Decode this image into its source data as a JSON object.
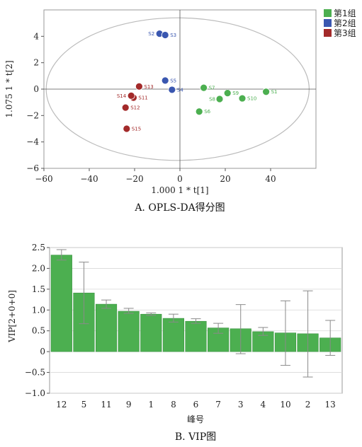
{
  "colors": {
    "group1": "#4caf50",
    "group2": "#3a57b0",
    "group3": "#a32a2a",
    "bar": "#4caf50",
    "bar_edge": "#2f8a36"
  },
  "chart_data": [
    {
      "type": "scatter",
      "caption": "A. OPLS-DA得分图",
      "xlabel": "1.000 1 * t[1]",
      "ylabel": "1.075 1 * t[2]",
      "xlim": [
        -60,
        60
      ],
      "ylim": [
        -6,
        6
      ],
      "xticks": [
        "−60",
        "−40",
        "−20",
        "0",
        "20",
        "40"
      ],
      "yticks": [
        "4",
        "2",
        "0",
        "−2",
        "−4",
        "−6"
      ],
      "grid": false,
      "legend_position": "top-right",
      "series": [
        {
          "name": "第1组",
          "points": [
            {
              "label": "S1",
              "x": 38,
              "y": -0.2
            },
            {
              "label": "S6",
              "x": 8.5,
              "y": -1.7
            },
            {
              "label": "S7",
              "x": 10.5,
              "y": 0.1
            },
            {
              "label": "S8",
              "x": 17.5,
              "y": -0.75
            },
            {
              "label": "S9",
              "x": 21,
              "y": -0.3
            },
            {
              "label": "S10",
              "x": 27.5,
              "y": -0.7
            }
          ]
        },
        {
          "name": "第2组",
          "points": [
            {
              "label": "S2",
              "x": -9,
              "y": 4.2
            },
            {
              "label": "S3",
              "x": -6.5,
              "y": 4.1
            },
            {
              "label": "S4",
              "x": -3.5,
              "y": -0.05
            },
            {
              "label": "S5",
              "x": -6.5,
              "y": 0.65
            }
          ]
        },
        {
          "name": "第3组",
          "points": [
            {
              "label": "S11",
              "x": -20.5,
              "y": -0.65
            },
            {
              "label": "S12",
              "x": -24,
              "y": -1.4
            },
            {
              "label": "S13",
              "x": -18,
              "y": 0.2
            },
            {
              "label": "S14",
              "x": -21.5,
              "y": -0.5
            },
            {
              "label": "S15",
              "x": -23.5,
              "y": -3.0
            }
          ]
        }
      ]
    },
    {
      "type": "bar",
      "caption": "B. VIP图",
      "xlabel": "峰号",
      "ylabel": "VIP[2+0+0]",
      "ylim": [
        -1.0,
        2.5
      ],
      "yticks": [
        "2.5",
        "2.0",
        "1.5",
        "1.0",
        "0.5",
        "0",
        "−0.5",
        "−1.0"
      ],
      "categories": [
        "12",
        "5",
        "11",
        "9",
        "1",
        "8",
        "6",
        "7",
        "3",
        "4",
        "10",
        "2",
        "13"
      ],
      "values": [
        2.32,
        1.41,
        1.14,
        0.97,
        0.9,
        0.8,
        0.73,
        0.57,
        0.55,
        0.48,
        0.45,
        0.43,
        0.33
      ],
      "error_low": [
        2.2,
        0.67,
        1.04,
        0.92,
        0.87,
        0.71,
        0.68,
        0.44,
        -0.05,
        0.39,
        -0.33,
        -0.61,
        -0.09
      ],
      "error_high": [
        2.45,
        2.15,
        1.24,
        1.04,
        0.93,
        0.9,
        0.79,
        0.68,
        1.13,
        0.58,
        1.22,
        1.46,
        0.75
      ]
    }
  ]
}
